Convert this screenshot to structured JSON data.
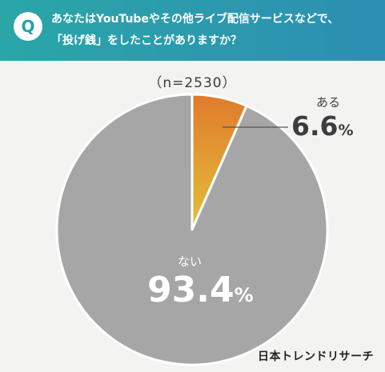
{
  "header": {
    "badge": "Q",
    "question_line1": "あなたはYouTubeやその他ライブ配信サービスなどで、",
    "question_line2": "「投げ銭」をしたことがありますか？"
  },
  "sample_label": "（n=2530）",
  "brand": "日本トレンドリサーチ",
  "colors": {
    "header_start": "#2aa6a8",
    "header_end": "#2d8fb3",
    "slice_small_top": "#e07a2c",
    "slice_small_bottom": "#e3c03a",
    "slice_large": "#a6a6a6",
    "background": "#f3f3f2"
  },
  "chart_data": {
    "type": "pie",
    "title": "",
    "slices": [
      {
        "label": "ある",
        "value": 6.6,
        "unit": "%"
      },
      {
        "label": "ない",
        "value": 93.4,
        "unit": "%"
      }
    ]
  },
  "display": {
    "slice0_value": "6.6",
    "slice1_value": "93.4",
    "pct": "%"
  }
}
